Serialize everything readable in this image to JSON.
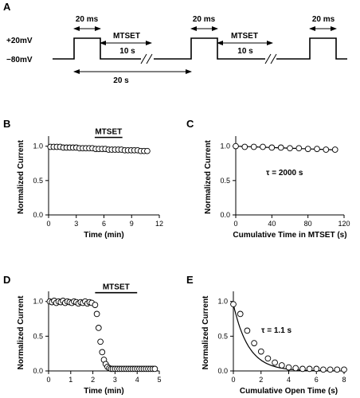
{
  "protocol": {
    "panel": "A",
    "v_high": "+20mV",
    "v_low": "−80mV",
    "pulse_label": "20 ms",
    "treatment_label": "MTSET",
    "treatment_duration": "10 s",
    "interval_label": "20 s"
  },
  "chart_data": [
    {
      "panel": "B",
      "type": "scatter",
      "xlabel": "Time (min)",
      "ylabel": "Normalized Current",
      "xlim": [
        0,
        12
      ],
      "ylim": [
        0,
        1.1
      ],
      "xticks": [
        "0",
        "3",
        "6",
        "9",
        "12"
      ],
      "yticks": [
        "0.0",
        "0.5",
        "1.0"
      ],
      "bar_label": "MTSET",
      "bar_range": [
        5,
        8
      ],
      "series": [
        {
          "x": [
            0.2,
            0.55,
            0.9,
            1.25,
            1.6,
            1.95,
            2.3,
            2.65,
            3.0,
            3.35,
            3.7,
            4.05,
            4.4,
            4.75,
            5.1,
            5.45,
            5.8,
            6.15,
            6.5,
            6.85,
            7.2,
            7.55,
            7.9,
            8.25,
            8.6,
            8.95,
            9.3,
            9.65,
            10.0,
            10.35,
            10.7
          ],
          "y": [
            0.99,
            0.99,
            0.99,
            0.99,
            0.98,
            0.98,
            0.98,
            0.98,
            0.98,
            0.97,
            0.97,
            0.97,
            0.97,
            0.97,
            0.96,
            0.96,
            0.96,
            0.96,
            0.95,
            0.95,
            0.95,
            0.95,
            0.95,
            0.94,
            0.94,
            0.94,
            0.94,
            0.94,
            0.93,
            0.93,
            0.93
          ]
        }
      ]
    },
    {
      "panel": "C",
      "type": "scatter",
      "xlabel": "Cumulative Time in MTSET (s)",
      "ylabel": "Normalized Current",
      "xlim": [
        0,
        120
      ],
      "ylim": [
        0,
        1.1
      ],
      "xticks": [
        "0",
        "40",
        "80",
        "120"
      ],
      "yticks": [
        "0.0",
        "0.5",
        "1.0"
      ],
      "annotation": "τ = 2000 s",
      "fit": {
        "tau": 2000,
        "x_end": 110
      },
      "series": [
        {
          "x": [
            0,
            10,
            20,
            30,
            40,
            50,
            60,
            70,
            80,
            90,
            100,
            110
          ],
          "y": [
            1.0,
            0.99,
            0.99,
            0.99,
            0.98,
            0.98,
            0.97,
            0.97,
            0.96,
            0.96,
            0.95,
            0.95
          ]
        }
      ]
    },
    {
      "panel": "D",
      "type": "scatter",
      "xlabel": "Time (min)",
      "ylabel": "Normalized Current",
      "xlim": [
        0,
        5
      ],
      "ylim": [
        0,
        1.1
      ],
      "xticks": [
        "0",
        "1",
        "2",
        "3",
        "4",
        "5"
      ],
      "yticks": [
        "0.0",
        "0.5",
        "1.0"
      ],
      "bar_label": "MTSET",
      "bar_range": [
        2.1,
        4.0
      ],
      "series": [
        {
          "x": [
            0.05,
            0.15,
            0.25,
            0.35,
            0.45,
            0.55,
            0.65,
            0.75,
            0.85,
            0.95,
            1.05,
            1.15,
            1.25,
            1.35,
            1.45,
            1.55,
            1.65,
            1.75,
            1.85,
            1.95,
            2.1,
            2.18,
            2.26,
            2.34,
            2.42,
            2.5,
            2.58,
            2.66,
            2.74,
            2.82,
            2.9,
            3.0,
            3.1,
            3.2,
            3.3,
            3.4,
            3.5,
            3.6,
            3.7,
            3.8,
            3.9,
            4.0,
            4.1,
            4.2,
            4.3,
            4.4,
            4.5,
            4.6,
            4.7,
            4.8
          ],
          "y": [
            1.0,
            0.99,
            1.01,
            0.98,
            1.0,
            0.99,
            1.01,
            0.98,
            1.0,
            0.99,
            0.98,
            1.0,
            0.99,
            0.97,
            0.99,
            0.98,
            1.0,
            0.97,
            0.99,
            0.98,
            0.95,
            0.82,
            0.62,
            0.42,
            0.27,
            0.16,
            0.1,
            0.06,
            0.04,
            0.03,
            0.03,
            0.03,
            0.03,
            0.03,
            0.03,
            0.03,
            0.03,
            0.03,
            0.03,
            0.03,
            0.03,
            0.03,
            0.03,
            0.03,
            0.03,
            0.03,
            0.03,
            0.03,
            0.03,
            0.03
          ]
        }
      ]
    },
    {
      "panel": "E",
      "type": "scatter",
      "xlabel": "Cumulative Open Time (s)",
      "ylabel": "Normalized Current",
      "xlim": [
        0,
        8
      ],
      "ylim": [
        0,
        1.1
      ],
      "xticks": [
        "0",
        "2",
        "4",
        "6",
        "8"
      ],
      "yticks": [
        "0.0",
        "0.5",
        "1.0"
      ],
      "annotation": "τ = 1.1 s",
      "fit": {
        "tau": 1.1,
        "x_end": 7.5
      },
      "series": [
        {
          "x": [
            0,
            0.5,
            1.0,
            1.5,
            2.0,
            2.5,
            3.0,
            3.5,
            4.0,
            4.5,
            5.0,
            5.5,
            6.0,
            6.5,
            7.0,
            7.5,
            8.0
          ],
          "y": [
            0.96,
            0.82,
            0.58,
            0.4,
            0.28,
            0.18,
            0.12,
            0.08,
            0.05,
            0.04,
            0.03,
            0.03,
            0.03,
            0.02,
            0.02,
            0.02,
            0.02
          ]
        }
      ]
    }
  ]
}
